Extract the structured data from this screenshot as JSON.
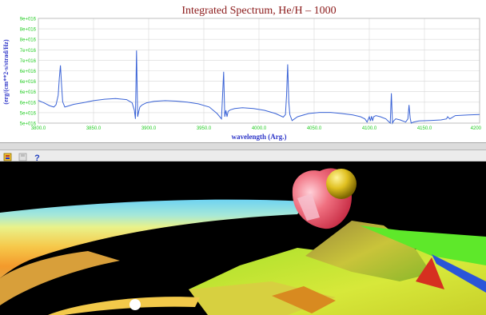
{
  "chart_data": {
    "type": "line",
    "title": "Integrated Spectrum,  He/H – 1000",
    "xlabel": "wavelength (Arg.)",
    "ylabel": "(erg/(cm**2-s/strad/Hz)",
    "xlim": [
      3800,
      4200
    ],
    "ylim": [
      5e+16,
      9.9e+16
    ],
    "x_ticks": [
      "3800.0",
      "3850.0",
      "3900.0",
      "3950.0",
      "4000.0",
      "4050.0",
      "4100.0",
      "4150.0",
      "4200"
    ],
    "y_ticks": [
      "9e+016",
      "8e+016",
      "8e+016",
      "7e+016",
      "7e+016",
      "6e+016",
      "6e+016",
      "6e+016",
      "6e+016",
      "5e+016",
      "5e+016"
    ],
    "grid": true,
    "series": [
      {
        "x": [
          3800,
          3805,
          3810,
          3814,
          3816,
          3818,
          3819,
          3820,
          3821,
          3822,
          3824,
          3827,
          3832,
          3840,
          3850,
          3860,
          3870,
          3880,
          3885,
          3887,
          3888,
          3889,
          3890,
          3891,
          3892,
          3894,
          3898,
          3905,
          3915,
          3925,
          3935,
          3945,
          3955,
          3962,
          3966,
          3968,
          3969,
          3970,
          3971,
          3972,
          3974,
          3978,
          3985,
          3995,
          4005,
          4015,
          4022,
          4024,
          4025,
          4026,
          4027,
          4028,
          4030,
          4035,
          4045,
          4055,
          4065,
          4075,
          4085,
          4092,
          4096,
          4098,
          4100,
          4101,
          4102,
          4103,
          4104,
          4106,
          4110,
          4115,
          4119,
          4120,
          4121,
          4122,
          4124,
          4128,
          4133,
          4135,
          4136,
          4137,
          4138,
          4140,
          4145,
          4155,
          4165,
          4170,
          4171,
          4173,
          4178,
          4190,
          4200
        ],
        "y": [
          6.06e+16,
          5.95e+16,
          5.82e+16,
          5.75e+16,
          5.86e+16,
          6.3e+16,
          7.1e+16,
          7.7e+16,
          6.8e+16,
          6e+16,
          5.75e+16,
          5.8e+16,
          5.88e+16,
          5.95e+16,
          6.05e+16,
          6.12e+16,
          6.15e+16,
          6.1e+16,
          5.95e+16,
          5.6e+16,
          5.2e+16,
          8.4e+16,
          5.3e+16,
          5.55e+16,
          5.75e+16,
          5.85e+16,
          5.95e+16,
          6.02e+16,
          6.05e+16,
          6.03e+16,
          5.98e+16,
          5.9e+16,
          5.75e+16,
          5.45e+16,
          5.2e+16,
          7.4e+16,
          5.3e+16,
          5.6e+16,
          5.3e+16,
          5.55e+16,
          5.62e+16,
          5.68e+16,
          5.72e+16,
          5.68e+16,
          5.6e+16,
          5.45e+16,
          5.28e+16,
          5.4e+16,
          6.3e+16,
          7.75e+16,
          6e+16,
          5.4e+16,
          5.12e+16,
          5.3e+16,
          5.45e+16,
          5.5e+16,
          5.5e+16,
          5.45e+16,
          5.38e+16,
          5.3e+16,
          5.2e+16,
          5.05e+16,
          5.3e+16,
          5.1e+16,
          5.32e+16,
          5.1e+16,
          5.3e+16,
          5.35e+16,
          5.3e+16,
          5.2e+16,
          5e+16,
          6.4e+16,
          4.9e+16,
          5.1e+16,
          5.2e+16,
          5.15e+16,
          5.05e+16,
          5.2e+16,
          5.85e+16,
          5.25e+16,
          5e+16,
          5.05e+16,
          5.1e+16,
          5.12e+16,
          5.15e+16,
          5.2e+16,
          5.3e+16,
          5.2e+16,
          5.35e+16,
          5.38e+16,
          5.4e+16
        ]
      }
    ]
  },
  "colors": {
    "title": "#8b1a1a",
    "axis_text": "#2e36c8",
    "tick_text": "#22cc22",
    "series": "#3a63d6",
    "grid": "#d8d8d8"
  },
  "toolbar": {
    "icons": [
      "settings-icon",
      "save-icon",
      "help-icon"
    ]
  },
  "scene": {
    "description_icon": "3d-accretion-disk-render"
  }
}
